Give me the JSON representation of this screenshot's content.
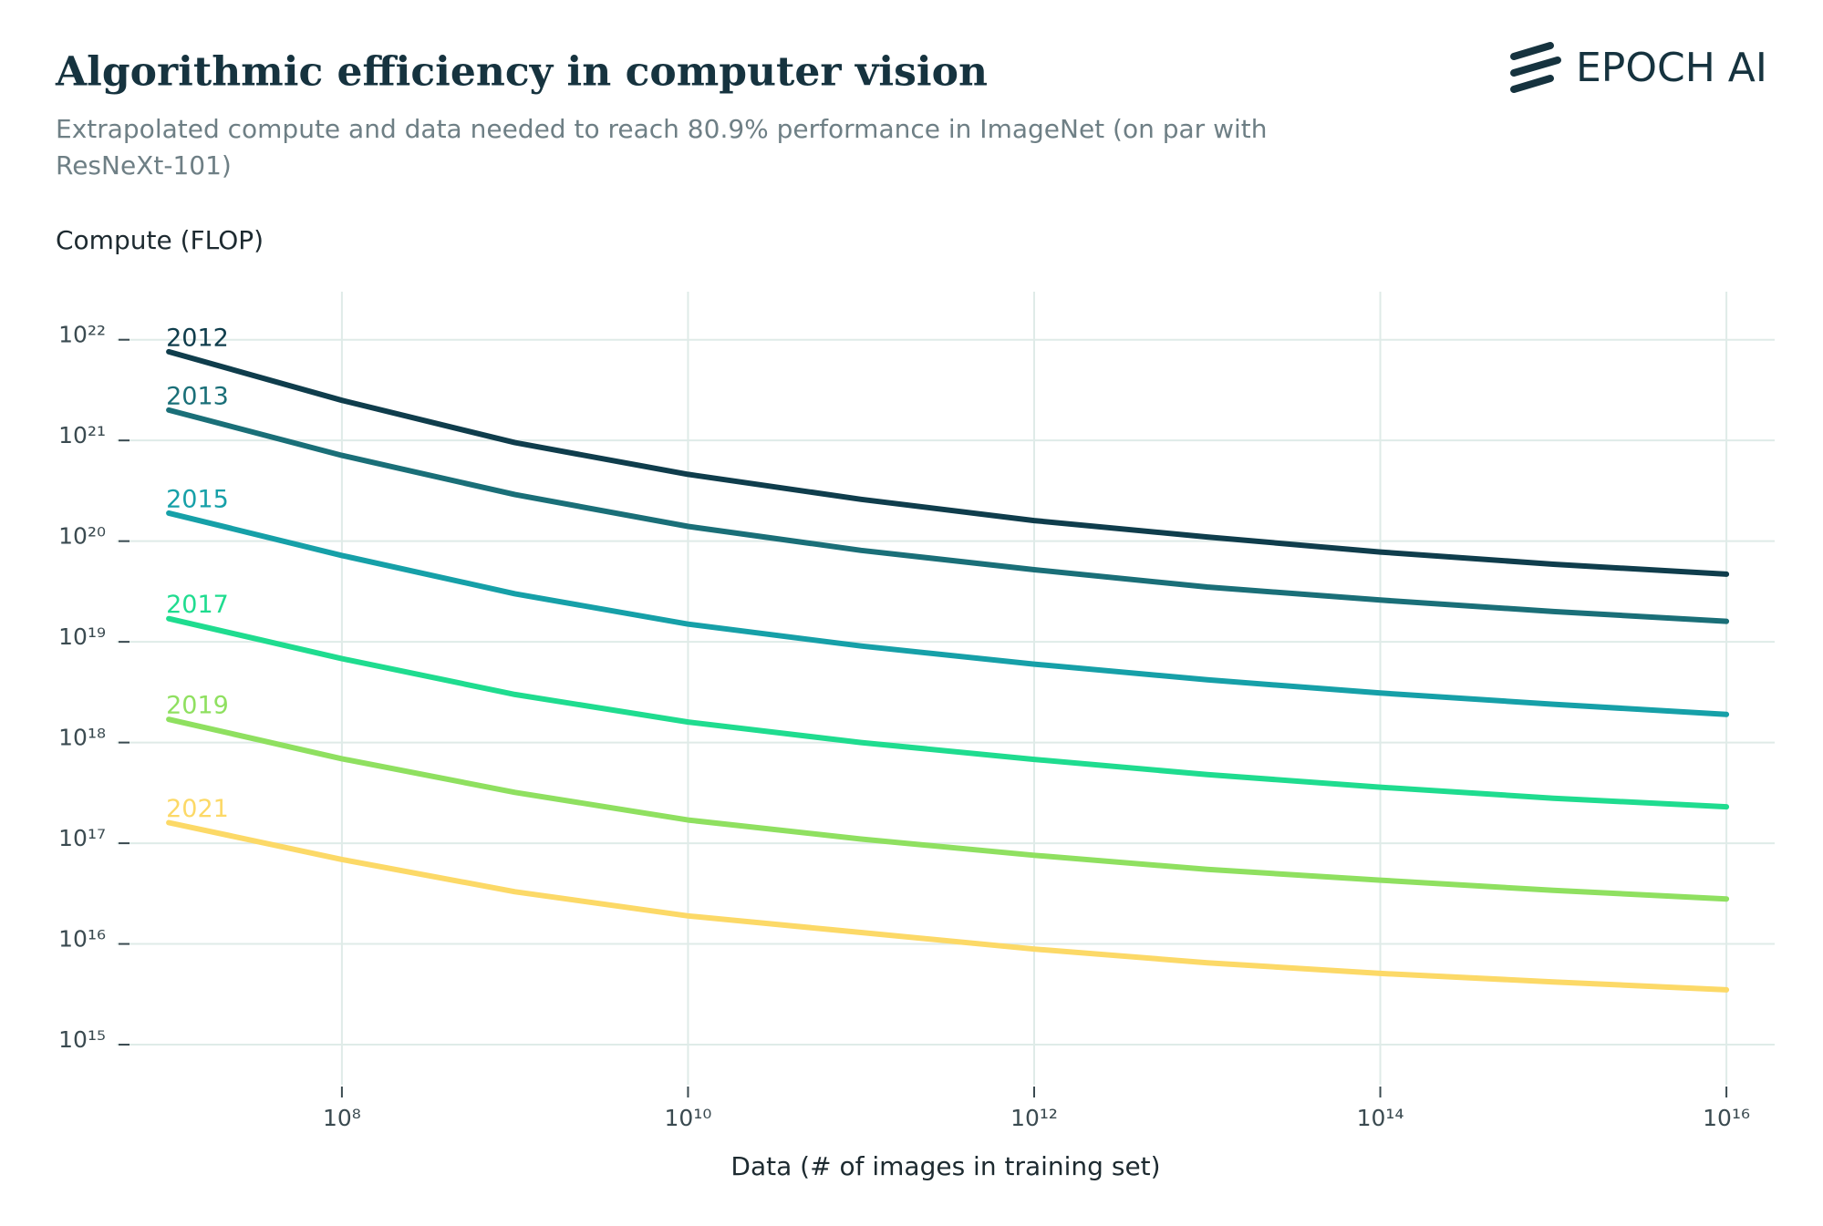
{
  "header": {
    "logo": "EPOCH AI"
  },
  "chart_data": {
    "type": "line",
    "title": "Algorithmic efficiency in computer vision",
    "subtitle": "Extrapolated compute and data needed to reach 80.9% performance in ImageNet (on par with ResNeXt-101)",
    "y_label": "Compute (FLOP)",
    "x_label": "Data (# of images in training set)",
    "x_log": true,
    "y_log": true,
    "grid": true,
    "x": [
      10000000.0,
      100000000.0,
      1000000000.0,
      10000000000.0,
      100000000000.0,
      1000000000000.0,
      10000000000000.0,
      100000000000000.0,
      1000000000000000.0,
      1e+16
    ],
    "xlim": [
      5000000.0,
      1.9e+16
    ],
    "ylim": [
      400000000000000.0,
      3e+22
    ],
    "xticks": [
      {
        "value": 100000000.0,
        "label": "10⁸"
      },
      {
        "value": 10000000000.0,
        "label": "10¹⁰"
      },
      {
        "value": 1000000000000.0,
        "label": "10¹²"
      },
      {
        "value": 100000000000000.0,
        "label": "10¹⁴"
      },
      {
        "value": 1e+16,
        "label": "10¹⁶"
      }
    ],
    "yticks": [
      {
        "value": 1000000000000000.0,
        "label": "10¹⁵"
      },
      {
        "value": 1e+16,
        "label": "10¹⁶"
      },
      {
        "value": 1e+17,
        "label": "10¹⁷"
      },
      {
        "value": 1e+18,
        "label": "10¹⁸"
      },
      {
        "value": 1e+19,
        "label": "10¹⁹"
      },
      {
        "value": 1e+20,
        "label": "10²⁰"
      },
      {
        "value": 1e+21,
        "label": "10²¹"
      },
      {
        "value": 1e+22,
        "label": "10²²"
      }
    ],
    "series": [
      {
        "name": "2012",
        "color": "#0f3d4c",
        "values": [
          7.6e+21,
          2.5e+21,
          9.5e+20,
          4.6e+20,
          2.6e+20,
          1.6e+20,
          1.1e+20,
          7.8e+19,
          5.9e+19,
          4.7e+19
        ]
      },
      {
        "name": "2013",
        "color": "#1a6f78",
        "values": [
          2e+21,
          7.1e+20,
          2.9e+20,
          1.4e+20,
          8.1e+19,
          5.2e+19,
          3.5e+19,
          2.6e+19,
          2e+19,
          1.6e+19
        ]
      },
      {
        "name": "2015",
        "color": "#16a0a8",
        "values": [
          1.9e+20,
          7.2e+19,
          3e+19,
          1.5e+19,
          9.1e+18,
          6e+18,
          4.2e+18,
          3.1e+18,
          2.4e+18,
          1.9e+18
        ]
      },
      {
        "name": "2017",
        "color": "#1fdc8f",
        "values": [
          1.7e+19,
          6.8e+18,
          3e+18,
          1.6e+18,
          1e+18,
          6.8e+17,
          4.8e+17,
          3.6e+17,
          2.8e+17,
          2.3e+17
        ]
      },
      {
        "name": "2019",
        "color": "#8fe060",
        "values": [
          1.7e+18,
          6.9e+17,
          3.2e+17,
          1.7e+17,
          1.1e+17,
          7.6e+16,
          5.5e+16,
          4.3e+16,
          3.4e+16,
          2.8e+16
        ]
      },
      {
        "name": "2021",
        "color": "#fcd967",
        "values": [
          1.6e+17,
          6.9e+16,
          3.3e+16,
          1.9e+16,
          1.3e+16,
          8900000000000000.0,
          6500000000000000.0,
          5100000000000000.0,
          4200000000000000.0,
          3500000000000000.0
        ]
      }
    ]
  }
}
